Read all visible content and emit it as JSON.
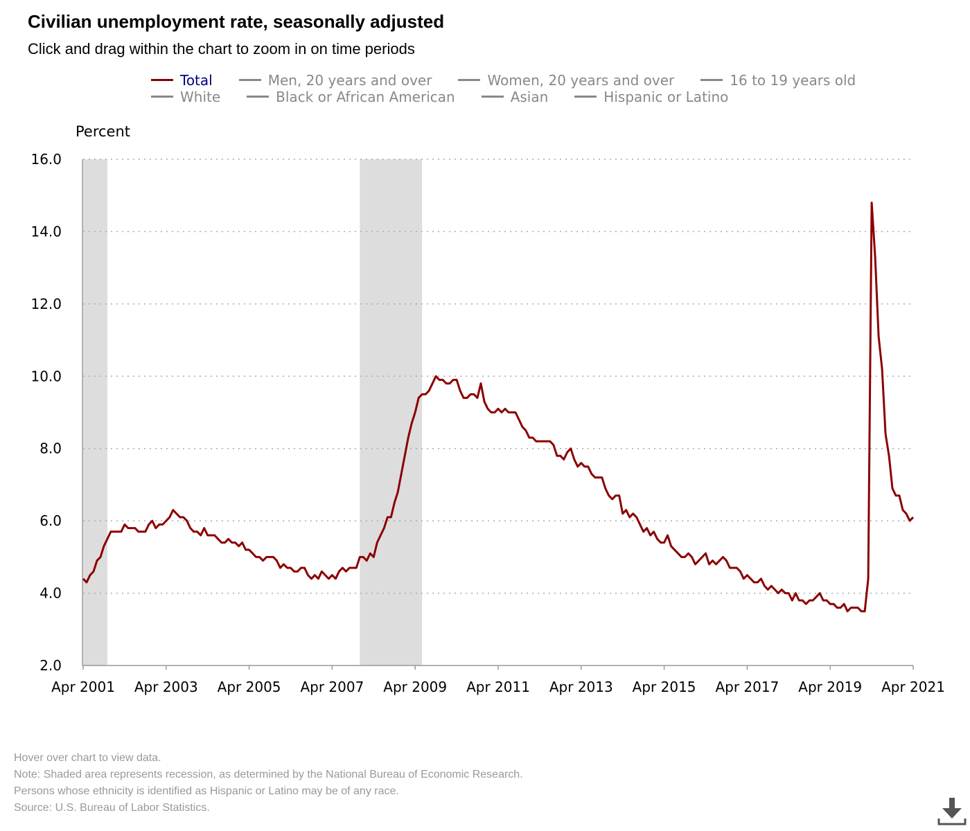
{
  "title": "Civilian unemployment rate, seasonally adjusted",
  "subtitle": "Click and drag within the chart to zoom in on time periods",
  "legend": [
    {
      "label": "Total",
      "active": true
    },
    {
      "label": "Men, 20 years and over",
      "active": false
    },
    {
      "label": "Women, 20 years and over",
      "active": false
    },
    {
      "label": "16 to 19 years old",
      "active": false
    },
    {
      "label": "White",
      "active": false
    },
    {
      "label": "Black or African American",
      "active": false
    },
    {
      "label": "Asian",
      "active": false
    },
    {
      "label": "Hispanic or Latino",
      "active": false
    }
  ],
  "notes": {
    "hover": "Hover over chart to view data.",
    "recession": "Note: Shaded area represents recession, as determined by the National Bureau of Economic Research.",
    "ethnicity": "Persons whose ethnicity is identified as Hispanic or Latino may be of any race.",
    "source": "Source: U.S. Bureau of Labor Statistics."
  },
  "icons": {
    "download": "download-icon"
  },
  "colors": {
    "total_line": "#8b0000",
    "recession_shade": "#dddddd",
    "inactive_legend": "#888888",
    "active_legend_text": "#000080"
  },
  "chart_data": {
    "type": "line",
    "title": "Civilian unemployment rate, seasonally adjusted",
    "ylabel": "Percent",
    "xlabel": "",
    "ylim": [
      2.0,
      16.0
    ],
    "yticks": [
      "16.0",
      "14.0",
      "12.0",
      "10.0",
      "8.0",
      "6.0",
      "4.0",
      "2.0"
    ],
    "xlim": [
      "2001-04",
      "2021-04"
    ],
    "xticks": [
      "Apr 2001",
      "Apr 2003",
      "Apr 2005",
      "Apr 2007",
      "Apr 2009",
      "Apr 2011",
      "Apr 2013",
      "Apr 2015",
      "Apr 2017",
      "Apr 2019",
      "Apr 2021"
    ],
    "grid": "horizontal dotted",
    "legend_position": "top",
    "recessions": [
      [
        "2001-04",
        "2001-11"
      ],
      [
        "2007-12",
        "2009-06"
      ]
    ],
    "series": [
      {
        "name": "Total",
        "start": "2001-04",
        "frequency": "monthly",
        "values": [
          4.4,
          4.3,
          4.5,
          4.6,
          4.9,
          5.0,
          5.3,
          5.5,
          5.7,
          5.7,
          5.7,
          5.7,
          5.9,
          5.8,
          5.8,
          5.8,
          5.7,
          5.7,
          5.7,
          5.9,
          6.0,
          5.8,
          5.9,
          5.9,
          6.0,
          6.1,
          6.3,
          6.2,
          6.1,
          6.1,
          6.0,
          5.8,
          5.7,
          5.7,
          5.6,
          5.8,
          5.6,
          5.6,
          5.6,
          5.5,
          5.4,
          5.4,
          5.5,
          5.4,
          5.4,
          5.3,
          5.4,
          5.2,
          5.2,
          5.1,
          5.0,
          5.0,
          4.9,
          5.0,
          5.0,
          5.0,
          4.9,
          4.7,
          4.8,
          4.7,
          4.7,
          4.6,
          4.6,
          4.7,
          4.7,
          4.5,
          4.4,
          4.5,
          4.4,
          4.6,
          4.5,
          4.4,
          4.5,
          4.4,
          4.6,
          4.7,
          4.6,
          4.7,
          4.7,
          4.7,
          5.0,
          5.0,
          4.9,
          5.1,
          5.0,
          5.4,
          5.6,
          5.8,
          6.1,
          6.1,
          6.5,
          6.8,
          7.3,
          7.8,
          8.3,
          8.7,
          9.0,
          9.4,
          9.5,
          9.5,
          9.6,
          9.8,
          10.0,
          9.9,
          9.9,
          9.8,
          9.8,
          9.9,
          9.9,
          9.6,
          9.4,
          9.4,
          9.5,
          9.5,
          9.4,
          9.8,
          9.3,
          9.1,
          9.0,
          9.0,
          9.1,
          9.0,
          9.1,
          9.0,
          9.0,
          9.0,
          8.8,
          8.6,
          8.5,
          8.3,
          8.3,
          8.2,
          8.2,
          8.2,
          8.2,
          8.2,
          8.1,
          7.8,
          7.8,
          7.7,
          7.9,
          8.0,
          7.7,
          7.5,
          7.6,
          7.5,
          7.5,
          7.3,
          7.2,
          7.2,
          7.2,
          6.9,
          6.7,
          6.6,
          6.7,
          6.7,
          6.2,
          6.3,
          6.1,
          6.2,
          6.1,
          5.9,
          5.7,
          5.8,
          5.6,
          5.7,
          5.5,
          5.4,
          5.4,
          5.6,
          5.3,
          5.2,
          5.1,
          5.0,
          5.0,
          5.1,
          5.0,
          4.8,
          4.9,
          5.0,
          5.1,
          4.8,
          4.9,
          4.8,
          4.9,
          5.0,
          4.9,
          4.7,
          4.7,
          4.7,
          4.6,
          4.4,
          4.5,
          4.4,
          4.3,
          4.3,
          4.4,
          4.2,
          4.1,
          4.2,
          4.1,
          4.0,
          4.1,
          4.0,
          4.0,
          3.8,
          4.0,
          3.8,
          3.8,
          3.7,
          3.8,
          3.8,
          3.9,
          4.0,
          3.8,
          3.8,
          3.7,
          3.7,
          3.6,
          3.6,
          3.7,
          3.5,
          3.6,
          3.6,
          3.6,
          3.5,
          3.5,
          4.4,
          14.8,
          13.3,
          11.1,
          10.2,
          8.4,
          7.8,
          6.9,
          6.7,
          6.7,
          6.3,
          6.2,
          6.0,
          6.1
        ]
      }
    ]
  }
}
